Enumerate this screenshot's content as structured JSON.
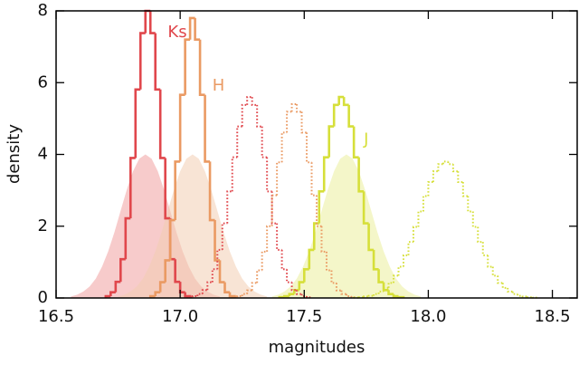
{
  "chart_data": {
    "type": "histogram",
    "xlabel": "magnitudes",
    "ylabel": "density",
    "xlim": [
      16.5,
      18.6
    ],
    "ylim": [
      0,
      8
    ],
    "xticks": [
      16.5,
      {
        "value": 17,
        "label": "17.0"
      },
      17.5,
      {
        "value": 18,
        "label": "18.0"
      },
      18.5
    ],
    "yticks": [
      0,
      2,
      4,
      6,
      8
    ],
    "series": [
      {
        "kind": "fill",
        "color": "#f0a0a0",
        "x": [
          16.56,
          16.585,
          16.61,
          16.635,
          16.66,
          16.685,
          16.71,
          16.735,
          16.76,
          16.785,
          16.81,
          16.835,
          16.86,
          16.885,
          16.91,
          16.935,
          16.96,
          16.985,
          17.01,
          17.035,
          17.06,
          17.085,
          17.11,
          17.135,
          17.16
        ],
        "values": [
          0.04,
          0.09,
          0.18,
          0.32,
          0.54,
          0.87,
          1.3,
          1.83,
          2.43,
          3.02,
          3.53,
          3.88,
          4.0,
          3.88,
          3.53,
          3.02,
          2.43,
          1.83,
          1.3,
          0.87,
          0.54,
          0.32,
          0.18,
          0.09,
          0.04
        ]
      },
      {
        "kind": "fill",
        "color": "#f3cdb3",
        "x": [
          16.75,
          16.775,
          16.8,
          16.825,
          16.85,
          16.875,
          16.9,
          16.925,
          16.95,
          16.975,
          17.0,
          17.025,
          17.05,
          17.075,
          17.1,
          17.125,
          17.15,
          17.175,
          17.2,
          17.225,
          17.25,
          17.275,
          17.3,
          17.325,
          17.35
        ],
        "values": [
          0.04,
          0.09,
          0.18,
          0.32,
          0.54,
          0.87,
          1.3,
          1.83,
          2.43,
          3.02,
          3.53,
          3.88,
          4.0,
          3.88,
          3.53,
          3.02,
          2.43,
          1.83,
          1.3,
          0.87,
          0.54,
          0.32,
          0.18,
          0.09,
          0.04
        ]
      },
      {
        "kind": "fill",
        "color": "#ebef9c",
        "x": [
          17.37,
          17.395,
          17.42,
          17.445,
          17.47,
          17.495,
          17.52,
          17.545,
          17.57,
          17.595,
          17.62,
          17.645,
          17.67,
          17.695,
          17.72,
          17.745,
          17.77,
          17.795,
          17.82,
          17.845,
          17.87,
          17.895,
          17.92,
          17.945,
          17.97
        ],
        "values": [
          0.04,
          0.09,
          0.18,
          0.32,
          0.54,
          0.87,
          1.3,
          1.83,
          2.43,
          3.02,
          3.53,
          3.88,
          4.0,
          3.88,
          3.53,
          3.02,
          2.43,
          1.83,
          1.3,
          0.87,
          0.54,
          0.32,
          0.18,
          0.09,
          0.04
        ]
      },
      {
        "kind": "step",
        "name": "Ks",
        "color": "#e0474c",
        "bins": [
          16.7,
          16.72,
          16.74,
          16.76,
          16.78,
          16.8,
          16.82,
          16.84,
          16.86,
          16.88,
          16.9,
          16.92,
          16.94,
          16.96,
          16.98,
          17.0,
          17.02,
          17.04
        ],
        "values": [
          0.05,
          0.16,
          0.45,
          1.08,
          2.22,
          3.9,
          5.81,
          7.38,
          8.0,
          7.38,
          5.81,
          3.9,
          2.22,
          1.08,
          0.45,
          0.16,
          0.05
        ]
      },
      {
        "kind": "step",
        "name": "H",
        "color": "#ea9a63",
        "bins": [
          16.88,
          16.9,
          16.92,
          16.94,
          16.96,
          16.98,
          17.0,
          17.02,
          17.04,
          17.06,
          17.08,
          17.1,
          17.12,
          17.14,
          17.16,
          17.18,
          17.2,
          17.22
        ],
        "values": [
          0.05,
          0.16,
          0.44,
          1.05,
          2.17,
          3.8,
          5.66,
          7.2,
          7.8,
          7.2,
          5.66,
          3.8,
          2.17,
          1.05,
          0.44,
          0.16,
          0.05
        ]
      },
      {
        "kind": "step",
        "name": "J",
        "color": "#d6df3a",
        "bins": [
          17.4,
          17.42,
          17.44,
          17.46,
          17.48,
          17.5,
          17.52,
          17.54,
          17.56,
          17.58,
          17.6,
          17.62,
          17.64,
          17.66,
          17.68,
          17.7,
          17.72,
          17.74,
          17.76,
          17.78,
          17.8,
          17.82,
          17.84,
          17.86,
          17.88,
          17.9
        ],
        "values": [
          0.02,
          0.05,
          0.11,
          0.22,
          0.44,
          0.8,
          1.34,
          2.08,
          2.97,
          3.92,
          4.78,
          5.38,
          5.6,
          5.38,
          4.78,
          3.92,
          2.97,
          2.08,
          1.34,
          0.8,
          0.44,
          0.22,
          0.11,
          0.05,
          0.02
        ]
      },
      {
        "kind": "dotted",
        "color": "#e0474c",
        "bins": [
          17.03,
          17.05,
          17.07,
          17.09,
          17.11,
          17.13,
          17.15,
          17.17,
          17.19,
          17.21,
          17.23,
          17.25,
          17.27,
          17.29,
          17.31,
          17.33,
          17.35,
          17.37,
          17.39,
          17.41,
          17.43,
          17.45,
          17.47,
          17.49,
          17.51,
          17.53
        ],
        "values": [
          0.02,
          0.05,
          0.11,
          0.22,
          0.44,
          0.8,
          1.34,
          2.08,
          2.97,
          3.92,
          4.78,
          5.38,
          5.6,
          5.38,
          4.78,
          3.92,
          2.97,
          2.08,
          1.34,
          0.8,
          0.44,
          0.22,
          0.11,
          0.05,
          0.02
        ]
      },
      {
        "kind": "dotted",
        "color": "#ea9a63",
        "bins": [
          17.21,
          17.23,
          17.25,
          17.27,
          17.29,
          17.31,
          17.33,
          17.35,
          17.37,
          17.39,
          17.41,
          17.43,
          17.45,
          17.47,
          17.49,
          17.51,
          17.53,
          17.55,
          17.57,
          17.59,
          17.61,
          17.63,
          17.65,
          17.67,
          17.69,
          17.71
        ],
        "values": [
          0.02,
          0.05,
          0.11,
          0.21,
          0.42,
          0.77,
          1.29,
          2.0,
          2.86,
          3.78,
          4.61,
          5.19,
          5.4,
          5.19,
          4.61,
          3.78,
          2.86,
          2.0,
          1.29,
          0.77,
          0.42,
          0.21,
          0.11,
          0.05,
          0.02
        ]
      },
      {
        "kind": "dotted",
        "color": "#d6df3a",
        "bins": [
          17.7,
          17.72,
          17.74,
          17.76,
          17.78,
          17.8,
          17.82,
          17.84,
          17.86,
          17.88,
          17.9,
          17.92,
          17.94,
          17.96,
          17.98,
          18.0,
          18.02,
          18.04,
          18.06,
          18.08,
          18.1,
          18.12,
          18.14,
          18.16,
          18.18,
          18.2,
          18.22,
          18.24,
          18.26,
          18.28,
          18.3,
          18.32,
          18.34,
          18.36,
          18.38,
          18.4,
          18.42,
          18.44
        ],
        "values": [
          0.01,
          0.02,
          0.04,
          0.06,
          0.11,
          0.18,
          0.28,
          0.42,
          0.62,
          0.87,
          1.19,
          1.56,
          1.98,
          2.41,
          2.84,
          3.23,
          3.53,
          3.73,
          3.8,
          3.73,
          3.53,
          3.23,
          2.84,
          2.41,
          1.98,
          1.56,
          1.19,
          0.87,
          0.62,
          0.42,
          0.28,
          0.18,
          0.11,
          0.06,
          0.04,
          0.02,
          0.01
        ]
      }
    ]
  }
}
